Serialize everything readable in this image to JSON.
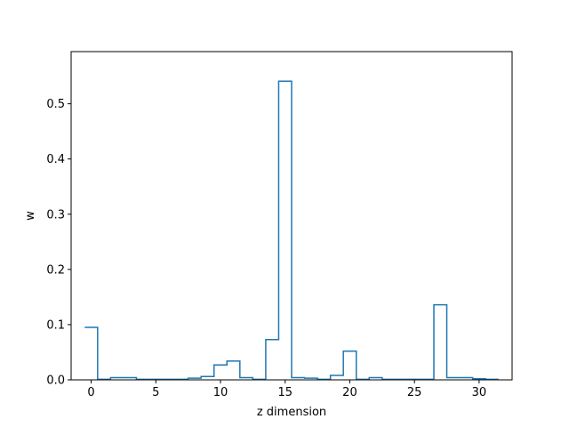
{
  "chart_data": {
    "type": "step",
    "title": "",
    "xlabel": "z dimension",
    "ylabel": "w",
    "xlim": [
      -1.55,
      32.55
    ],
    "ylim": [
      0,
      0.5945
    ],
    "xticks": [
      0,
      5,
      10,
      15,
      20,
      25,
      30
    ],
    "yticks": [
      0.0,
      0.1,
      0.2,
      0.3,
      0.4,
      0.5
    ],
    "xtick_labels": [
      "0",
      "5",
      "10",
      "15",
      "20",
      "25",
      "30"
    ],
    "ytick_labels": [
      "0.0",
      "0.1",
      "0.2",
      "0.3",
      "0.4",
      "0.5"
    ],
    "step_where": "mid",
    "x": [
      0,
      1,
      2,
      3,
      4,
      5,
      6,
      7,
      8,
      9,
      10,
      11,
      12,
      13,
      14,
      15,
      16,
      17,
      18,
      19,
      20,
      21,
      22,
      23,
      24,
      25,
      26,
      27,
      28,
      29,
      30,
      31
    ],
    "values": [
      0.095,
      0.001,
      0.004,
      0.004,
      0.001,
      0.001,
      0.001,
      0.001,
      0.003,
      0.006,
      0.027,
      0.034,
      0.004,
      0.001,
      0.073,
      0.541,
      0.004,
      0.003,
      0.001,
      0.008,
      0.052,
      0.001,
      0.004,
      0.001,
      0.001,
      0.001,
      0.001,
      0.136,
      0.004,
      0.004,
      0.002,
      0.001
    ],
    "color": "#1f77b4",
    "grid": false,
    "legend": false
  }
}
